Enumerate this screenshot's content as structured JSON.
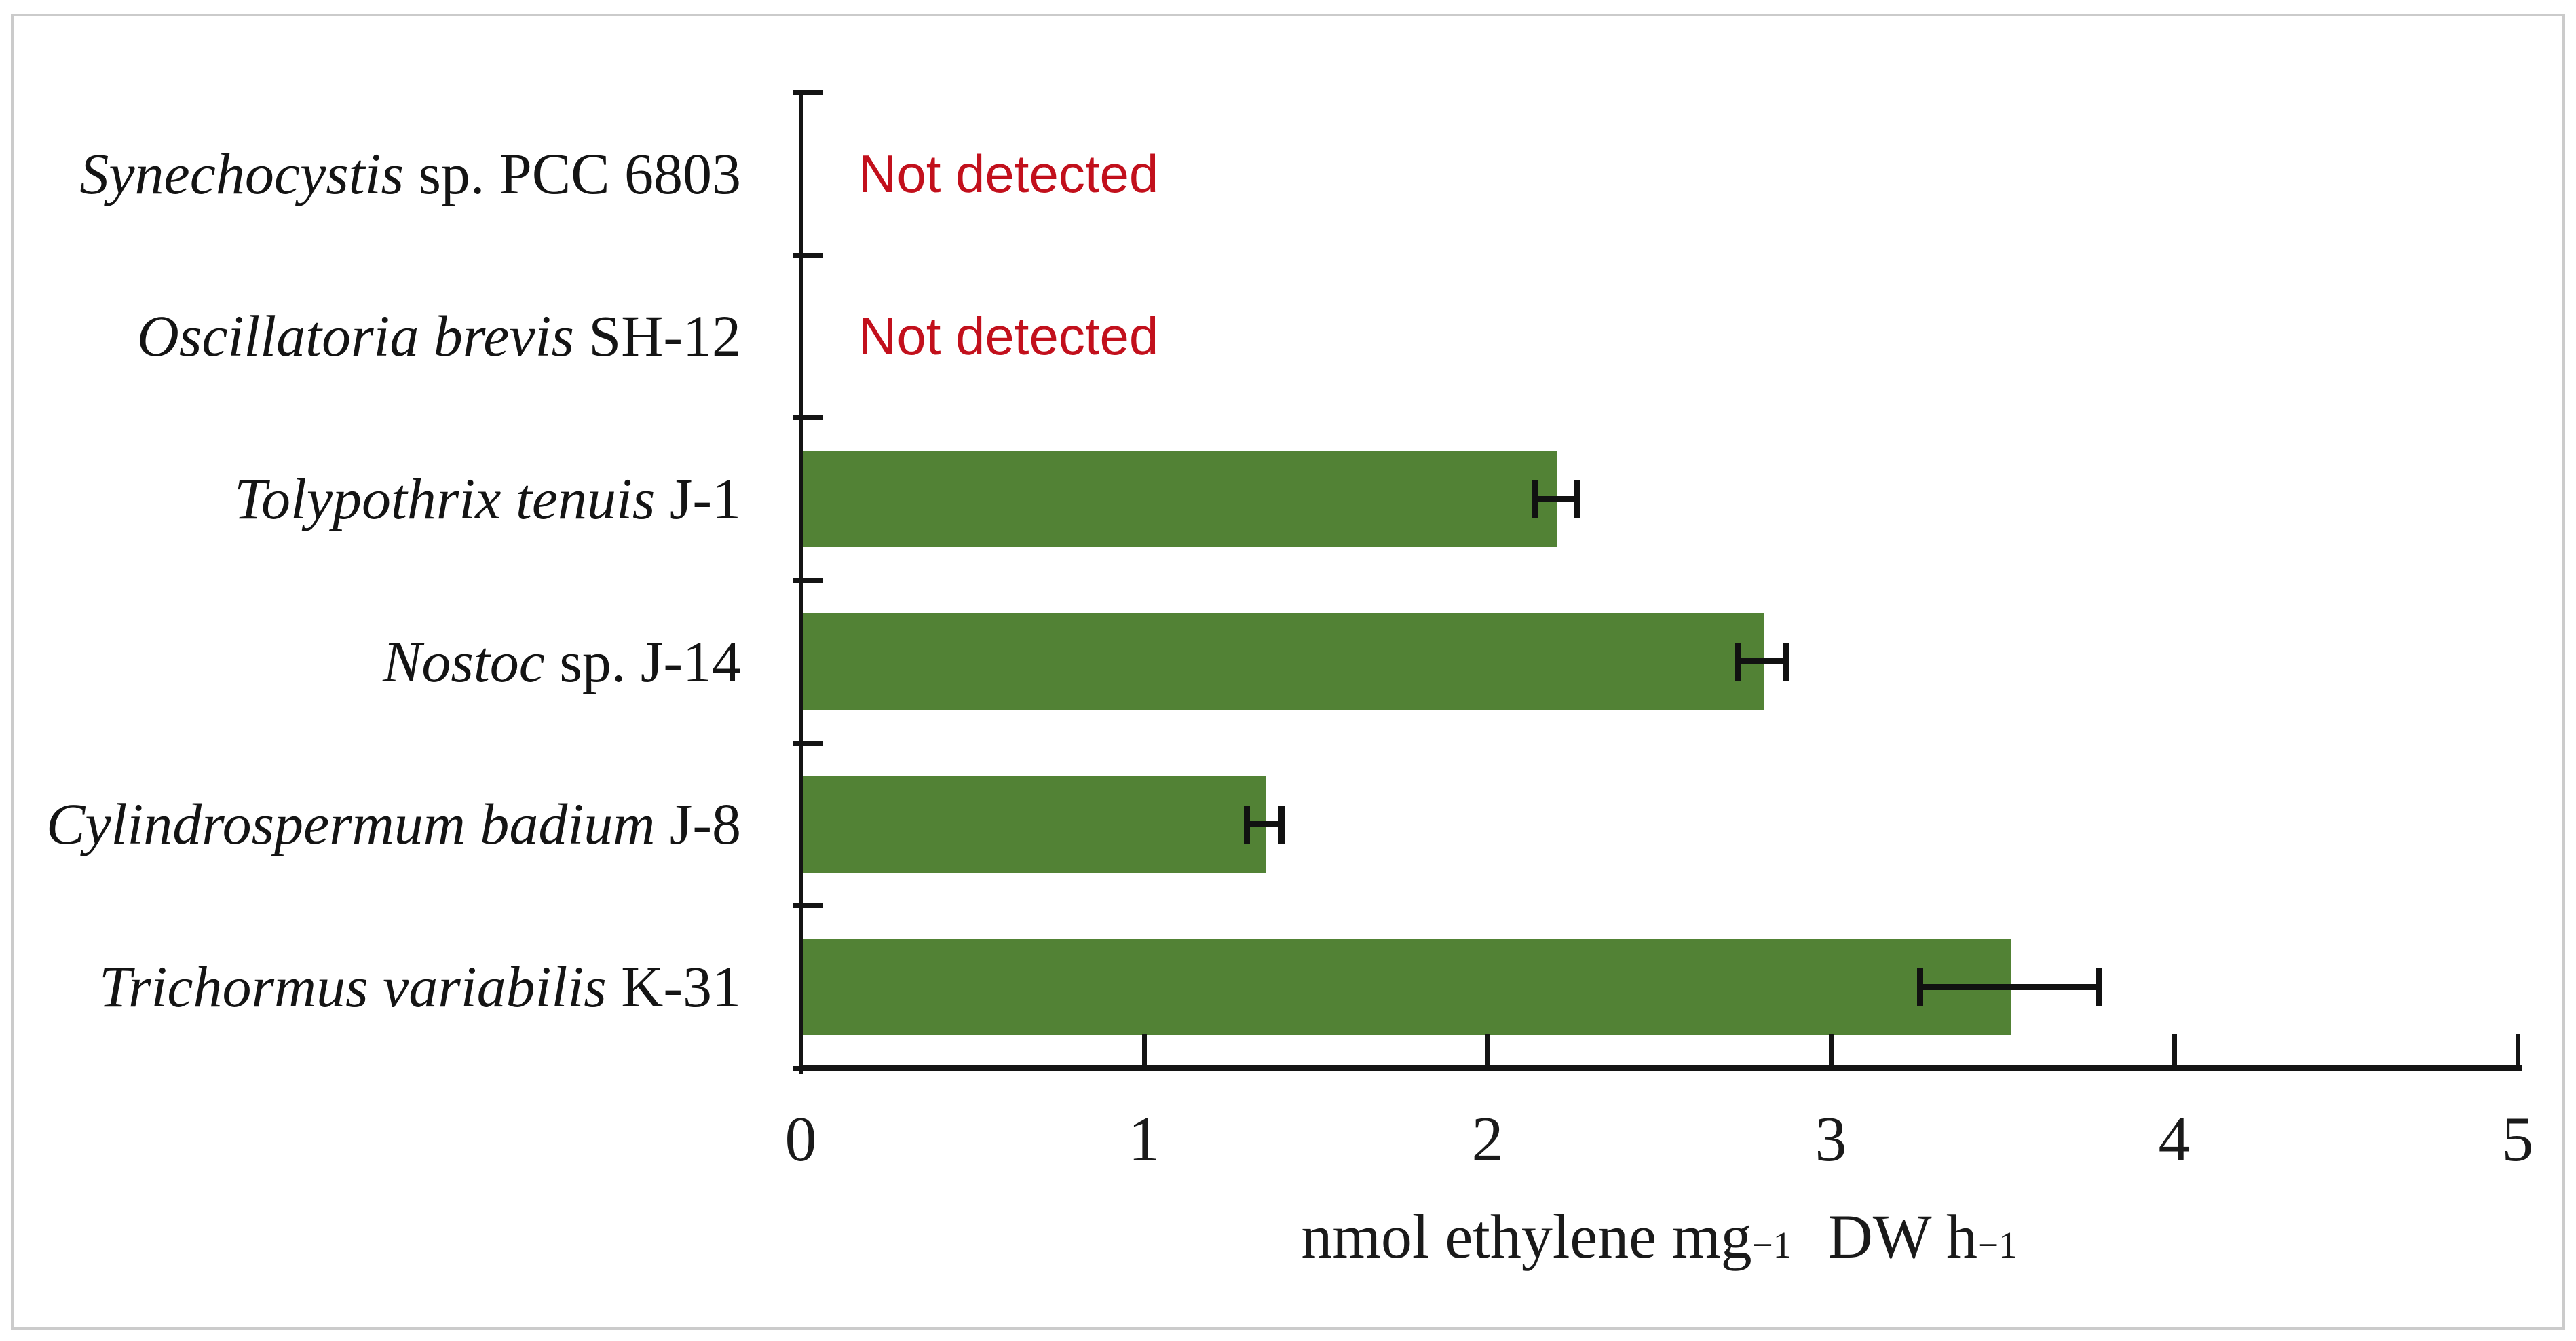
{
  "figure": {
    "kind": "horizontal-bar-chart-figure",
    "frame_border_color": "#cbcbcb",
    "background_color": "#ffffff"
  },
  "chart_data": {
    "type": "bar",
    "orientation": "horizontal",
    "title": "",
    "xlabel": "nmol ethylene mg−1 DW h−1",
    "xlabel_parts": [
      "nmol ethylene mg",
      "−1",
      " DW h",
      "−1"
    ],
    "x_ticks": [
      "0",
      "1",
      "2",
      "3",
      "4",
      "5"
    ],
    "xlim": [
      0,
      5
    ],
    "grid": false,
    "legend": false,
    "bar_color": "#528235",
    "error_bar_color": "#111111",
    "axis_color": "#141414",
    "not_detected_color": "#c2101c",
    "not_detected_label": "Not detected",
    "category_labels": [
      "Synechocystis sp. PCC 6803",
      "Oscillatoria brevis SH-12",
      "Tolypothrix tenuis J-1",
      "Nostoc sp. J-14",
      "Cylindrospermum badium J-8",
      "Trichormus variabilis K-31"
    ],
    "values": [
      null,
      null,
      2.2,
      2.8,
      1.35,
      3.52
    ],
    "errors": [
      null,
      null,
      0.06,
      0.07,
      0.05,
      0.26
    ],
    "rows": [
      {
        "italic": "Synechocystis",
        "regular": " sp. PCC 6803",
        "value": null,
        "error": null,
        "not_detected": true
      },
      {
        "italic": "Oscillatoria brevis",
        "regular": " SH-12",
        "value": null,
        "error": null,
        "not_detected": true
      },
      {
        "italic": "Tolypothrix tenuis",
        "regular": " J-1",
        "value": 2.2,
        "error": 0.06,
        "not_detected": false
      },
      {
        "italic": "Nostoc",
        "regular": " sp. J-14",
        "value": 2.8,
        "error": 0.07,
        "not_detected": false
      },
      {
        "italic": "Cylindrospermum badium",
        "regular": " J-8",
        "value": 1.35,
        "error": 0.05,
        "not_detected": false
      },
      {
        "italic": "Trichormus variabilis",
        "regular": " K-31",
        "value": 3.52,
        "error": 0.26,
        "not_detected": false
      }
    ]
  }
}
